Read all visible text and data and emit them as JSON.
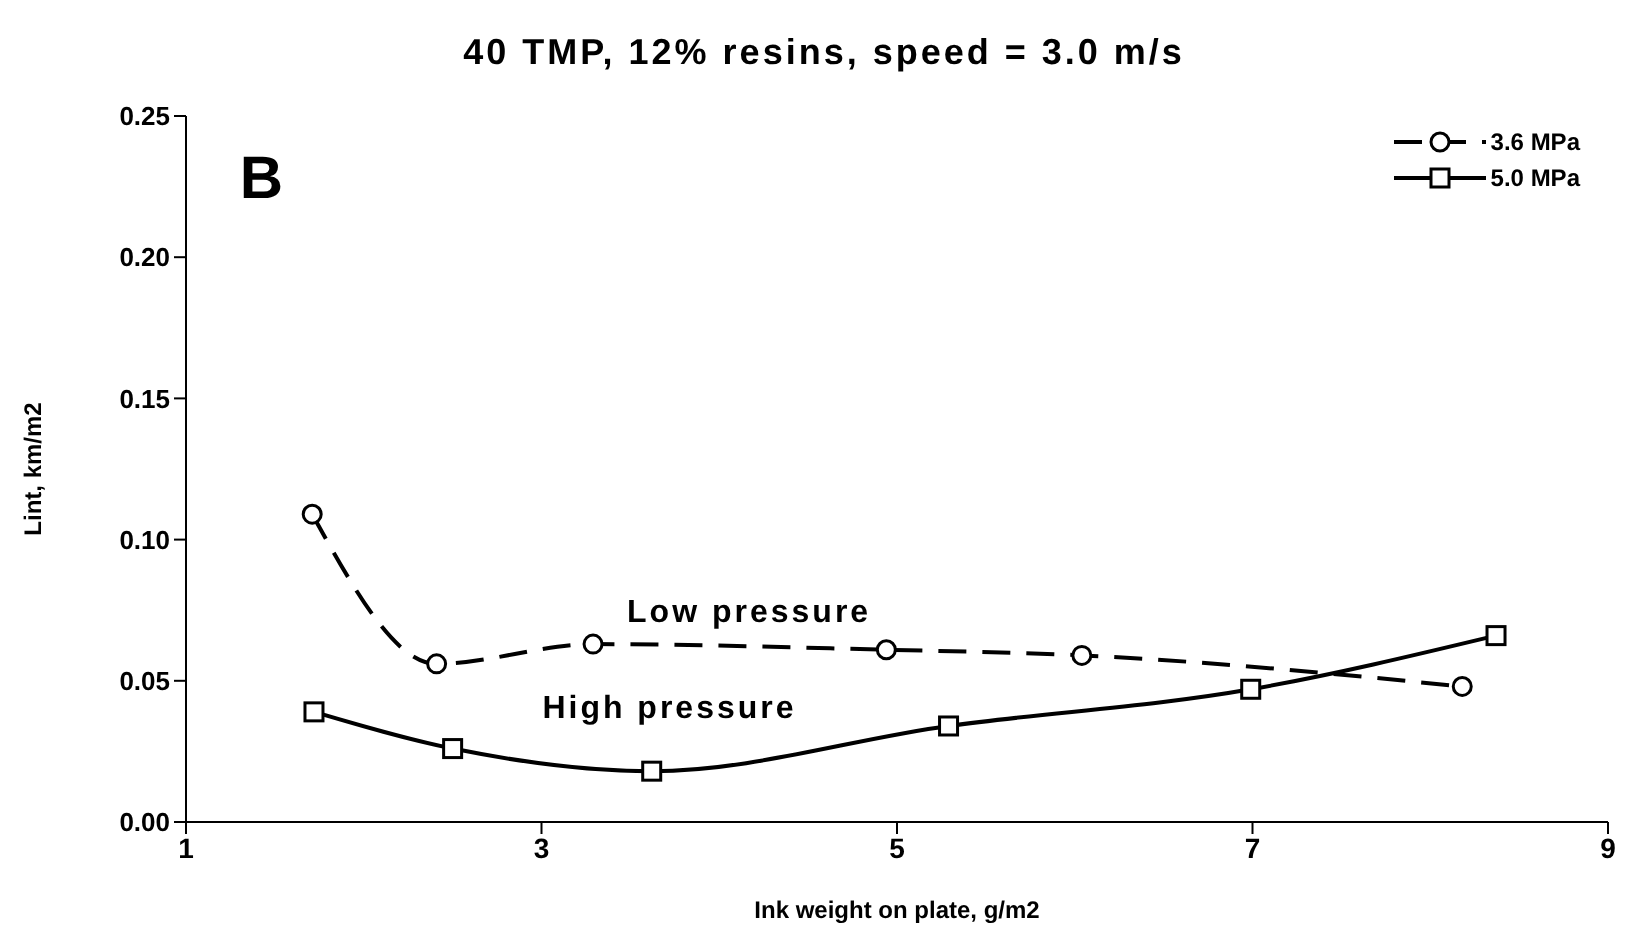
{
  "chart_data": {
    "type": "line",
    "title": "40 TMP, 12% resins, speed = 3.0 m/s",
    "xlabel": "Ink weight on plate, g/m2",
    "ylabel": "Lint, km/m2",
    "xlim": [
      1,
      9
    ],
    "xticks": [
      1,
      3,
      5,
      7,
      9
    ],
    "ylim": [
      0,
      0.25
    ],
    "yticks": [
      {
        "value": 0,
        "label": "0.00"
      },
      {
        "value": 0.05,
        "label": "0.05"
      },
      {
        "value": 0.1,
        "label": "0.10"
      },
      {
        "value": 0.15,
        "label": "0.15"
      },
      {
        "value": 0.2,
        "label": "0.20"
      },
      {
        "value": 0.25,
        "label": "0.25"
      }
    ],
    "grid": false,
    "legend": "top right",
    "series": [
      {
        "name": "3.6 MPa",
        "color": "#000000",
        "marker": "circle",
        "line_style": "dashed",
        "x": [
          1.71,
          2.41,
          3.29,
          4.94,
          6.04,
          8.18
        ],
        "values": [
          0.109,
          0.056,
          0.063,
          0.061,
          0.059,
          0.048
        ]
      },
      {
        "name": "5.0 MPa",
        "color": "#000000",
        "marker": "square",
        "line_style": "solid",
        "x": [
          1.72,
          2.5,
          3.62,
          5.29,
          6.99,
          8.37
        ],
        "values": [
          0.039,
          0.026,
          0.018,
          0.034,
          0.047,
          0.066
        ]
      }
    ],
    "annotations": [
      "B",
      "Low pressure",
      "High pressure"
    ]
  }
}
